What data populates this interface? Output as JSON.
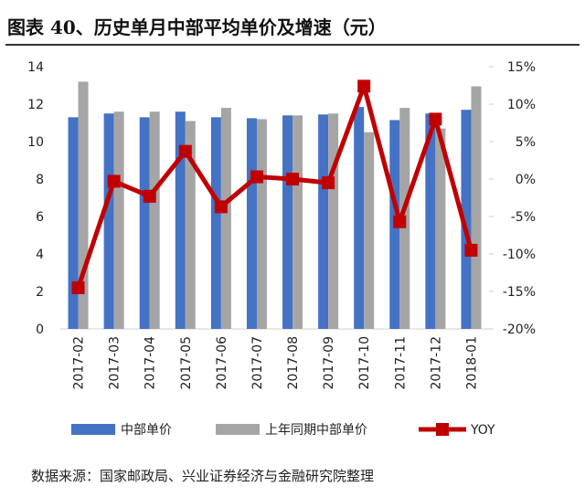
{
  "title": "图表 40、历史单月中部平均单价及增速（元）",
  "source": "数据来源：国家邮政局、兴业证券经济与金融研究院整理",
  "chart_data": {
    "type": "bar+line",
    "categories": [
      "2017-02",
      "2017-03",
      "2017-04",
      "2017-05",
      "2017-06",
      "2017-07",
      "2017-08",
      "2017-09",
      "2017-10",
      "2017-11",
      "2017-12",
      "2018-01"
    ],
    "series": [
      {
        "name": "中部单价",
        "type": "bar",
        "axis": "left",
        "color": "#4472C4",
        "values": [
          11.3,
          11.5,
          11.3,
          11.6,
          11.3,
          11.25,
          11.4,
          11.45,
          11.85,
          11.15,
          11.5,
          11.7
        ]
      },
      {
        "name": "上年同期中部单价",
        "type": "bar",
        "axis": "left",
        "color": "#A5A5A5",
        "values": [
          13.2,
          11.6,
          11.6,
          11.1,
          11.8,
          11.2,
          11.4,
          11.5,
          10.5,
          11.8,
          10.7,
          12.95
        ]
      },
      {
        "name": "YOY",
        "type": "line",
        "axis": "right",
        "color": "#C00000",
        "values": [
          -14.5,
          -0.3,
          -2.3,
          3.7,
          -3.7,
          0.3,
          0.0,
          -0.5,
          12.4,
          -5.7,
          8.0,
          -9.5
        ]
      }
    ],
    "ylim_left": [
      0,
      14
    ],
    "yticks_left": [
      "0",
      "2",
      "4",
      "6",
      "8",
      "10",
      "12",
      "14"
    ],
    "ylim_right": [
      -20,
      15
    ],
    "yticks_right": [
      "-20%",
      "-15%",
      "-10%",
      "-5%",
      "0%",
      "5%",
      "10%",
      "15%"
    ],
    "legend": "bottom",
    "grid": false
  }
}
